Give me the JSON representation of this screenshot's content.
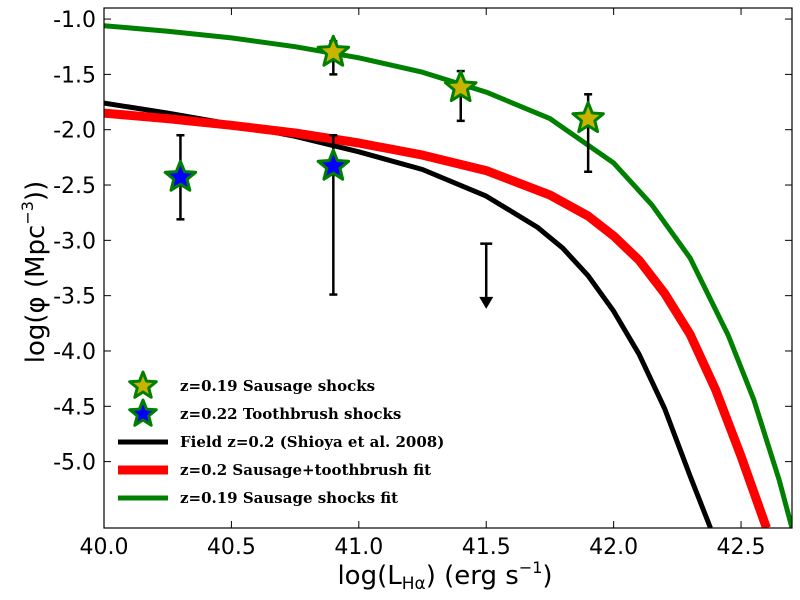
{
  "chart_data": {
    "type": "scatter",
    "xlabel": "log(L",
    "xlabel_sub": "Hα",
    "xlabel_tail": ") (erg s",
    "xlabel_sup": "−1",
    "xlabel_close": ")",
    "ylabel": "log(φ (Mpc",
    "ylabel_sup": "−3",
    "ylabel_close": "))",
    "xlim": [
      40.0,
      42.7
    ],
    "ylim": [
      -5.6,
      -0.9
    ],
    "xticks": [
      40.0,
      40.5,
      41.0,
      41.5,
      42.0,
      42.5
    ],
    "xtick_labels": [
      "40.0",
      "40.5",
      "41.0",
      "41.5",
      "42.0",
      "42.5"
    ],
    "yticks": [
      -1.0,
      -1.5,
      -2.0,
      -2.5,
      -3.0,
      -3.5,
      -4.0,
      -4.5,
      -5.0
    ],
    "ytick_labels": [
      "-1.0",
      "-1.5",
      "-2.0",
      "-2.5",
      "-3.0",
      "-3.5",
      "-4.0",
      "-4.5",
      "-5.0"
    ],
    "colors": {
      "sausage_star_fill": "#c8b400",
      "toothbrush_star_fill": "#0000ff",
      "star_edge": "#008000",
      "field_line": "#000000",
      "combined_fit_line": "#ff0000",
      "sausage_fit_line": "#008000",
      "errorbar": "#000000"
    },
    "series": [
      {
        "name": "z=0.19 Sausage shocks",
        "kind": "points",
        "marker": "star",
        "fill_key": "sausage_star_fill",
        "points": [
          {
            "x": 40.9,
            "y": -1.3,
            "ylow": -1.5,
            "yhigh": -1.2
          },
          {
            "x": 41.4,
            "y": -1.62,
            "ylow": -1.92,
            "yhigh": -1.47
          },
          {
            "x": 41.9,
            "y": -1.9,
            "ylow": -2.38,
            "yhigh": -1.68
          }
        ]
      },
      {
        "name": "z=0.22 Toothbrush shocks",
        "kind": "points",
        "marker": "star",
        "fill_key": "toothbrush_star_fill",
        "points": [
          {
            "x": 40.3,
            "y": -2.43,
            "ylow": -2.81,
            "yhigh": -2.05
          },
          {
            "x": 40.9,
            "y": -2.33,
            "ylow": -3.49,
            "yhigh": -2.05
          }
        ]
      },
      {
        "name": "upper limit",
        "kind": "upper_limit",
        "points": [
          {
            "x": 41.5,
            "ytop": -3.03,
            "ytip": -3.62
          }
        ]
      },
      {
        "name": "Field z=0.2 (Shioya et al. 2008)",
        "kind": "line",
        "color_key": "field_line",
        "width": 5,
        "x": [
          40.0,
          40.25,
          40.5,
          40.75,
          41.0,
          41.25,
          41.5,
          41.7,
          41.8,
          41.9,
          42.0,
          42.1,
          42.2,
          42.3,
          42.38
        ],
        "y": [
          -1.76,
          -1.85,
          -1.95,
          -2.06,
          -2.2,
          -2.36,
          -2.6,
          -2.88,
          -3.07,
          -3.32,
          -3.64,
          -4.03,
          -4.52,
          -5.13,
          -5.6
        ]
      },
      {
        "name": "z=0.2 Sausage+toothbrush fit",
        "kind": "line",
        "color_key": "combined_fit_line",
        "width": 9,
        "x": [
          40.0,
          40.25,
          40.5,
          40.75,
          41.0,
          41.25,
          41.5,
          41.75,
          41.9,
          42.0,
          42.1,
          42.2,
          42.3,
          42.4,
          42.5,
          42.6
        ],
        "y": [
          -1.85,
          -1.9,
          -1.96,
          -2.03,
          -2.12,
          -2.23,
          -2.37,
          -2.59,
          -2.78,
          -2.96,
          -3.18,
          -3.48,
          -3.85,
          -4.35,
          -4.95,
          -5.6
        ]
      },
      {
        "name": "z=0.19 Sausage shocks fit",
        "kind": "line",
        "color_key": "sausage_fit_line",
        "width": 5,
        "x": [
          40.0,
          40.25,
          40.5,
          40.75,
          41.0,
          41.25,
          41.5,
          41.75,
          42.0,
          42.15,
          42.3,
          42.45,
          42.55,
          42.65,
          42.7
        ],
        "y": [
          -1.06,
          -1.11,
          -1.17,
          -1.25,
          -1.35,
          -1.48,
          -1.66,
          -1.9,
          -2.3,
          -2.68,
          -3.16,
          -3.86,
          -4.44,
          -5.17,
          -5.6
        ]
      }
    ],
    "legend": {
      "position": "lower-left",
      "entries": [
        {
          "label": "z=0.19 Sausage shocks",
          "marker": "star",
          "fill_key": "sausage_star_fill"
        },
        {
          "label": "z=0.22 Toothbrush shocks",
          "marker": "star",
          "fill_key": "toothbrush_star_fill"
        },
        {
          "label": "Field z=0.2 (Shioya et al. 2008)",
          "marker": "line",
          "color_key": "field_line",
          "width": 5
        },
        {
          "label": "z=0.2 Sausage+toothbrush fit",
          "marker": "line",
          "color_key": "combined_fit_line",
          "width": 9
        },
        {
          "label": "z=0.19 Sausage shocks fit",
          "marker": "line",
          "color_key": "sausage_fit_line",
          "width": 5
        }
      ]
    }
  }
}
